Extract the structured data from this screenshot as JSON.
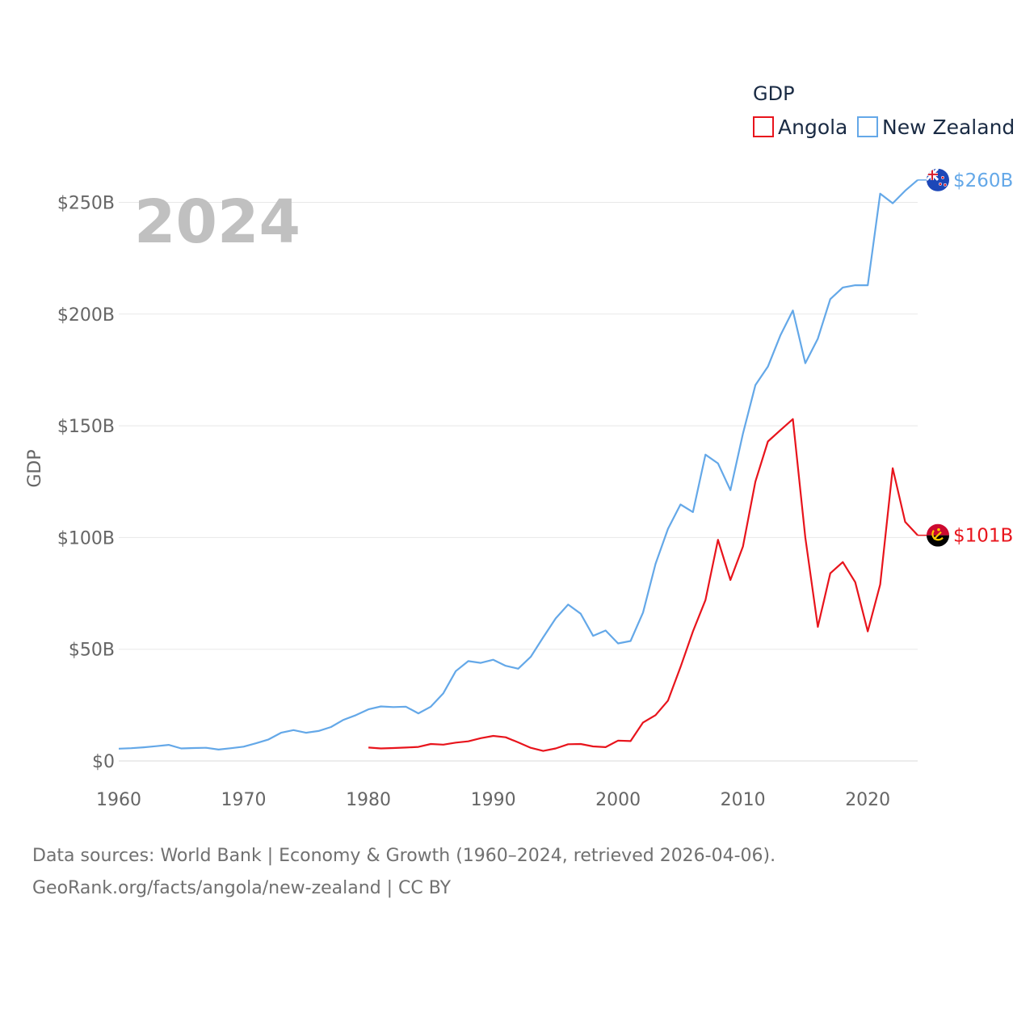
{
  "chart_data": {
    "type": "line",
    "title": "GDP",
    "overlay_year": "2024",
    "ylabel": "GDP",
    "xlabel": "",
    "xlim": [
      1960,
      2024
    ],
    "ylim": [
      0,
      265
    ],
    "y_unit": "billion USD",
    "x_ticks": [
      1960,
      1970,
      1980,
      1990,
      2000,
      2010,
      2020
    ],
    "x_tick_labels": [
      "1960",
      "1970",
      "1980",
      "1990",
      "2000",
      "2010",
      "2020"
    ],
    "y_ticks": [
      0,
      50,
      100,
      150,
      200,
      250
    ],
    "y_tick_labels": [
      "$0",
      "$50B",
      "$100B",
      "$150B",
      "$200B",
      "$250B"
    ],
    "grid": true,
    "legend": {
      "title": "GDP",
      "position": "top-right"
    },
    "series": [
      {
        "name": "Angola",
        "color": "#e8141c",
        "end_label": "$101B",
        "x": [
          1980,
          1981,
          1982,
          1983,
          1984,
          1985,
          1986,
          1987,
          1988,
          1989,
          1990,
          1991,
          1992,
          1993,
          1994,
          1995,
          1996,
          1997,
          1998,
          1999,
          2000,
          2001,
          2002,
          2003,
          2004,
          2005,
          2006,
          2007,
          2008,
          2009,
          2010,
          2011,
          2012,
          2013,
          2014,
          2015,
          2016,
          2017,
          2018,
          2019,
          2020,
          2021,
          2022,
          2023,
          2024
        ],
        "values": [
          6,
          5.6,
          5.8,
          6,
          6.3,
          7.6,
          7.3,
          8.2,
          8.8,
          10.2,
          11.2,
          10.6,
          8.3,
          5.9,
          4.5,
          5.6,
          7.5,
          7.6,
          6.5,
          6.2,
          9.1,
          8.9,
          17.2,
          20.5,
          27,
          42,
          58,
          72,
          99,
          81,
          96,
          125,
          143,
          148,
          153,
          100,
          60,
          84,
          89,
          80,
          58,
          79,
          131,
          107,
          101
        ]
      },
      {
        "name": "New Zealand",
        "color": "#64a8e8",
        "end_label": "$260B",
        "x": [
          1960,
          1961,
          1962,
          1963,
          1964,
          1965,
          1966,
          1967,
          1968,
          1969,
          1970,
          1971,
          1972,
          1973,
          1974,
          1975,
          1976,
          1977,
          1978,
          1979,
          1980,
          1981,
          1982,
          1983,
          1984,
          1985,
          1986,
          1987,
          1988,
          1989,
          1990,
          1991,
          1992,
          1993,
          1994,
          1995,
          1996,
          1997,
          1998,
          1999,
          2000,
          2001,
          2002,
          2003,
          2004,
          2005,
          2006,
          2007,
          2008,
          2009,
          2010,
          2011,
          2012,
          2013,
          2014,
          2015,
          2016,
          2017,
          2018,
          2019,
          2020,
          2021,
          2022,
          2023,
          2024
        ],
        "values": [
          5.5,
          5.7,
          6.1,
          6.6,
          7.2,
          5.6,
          5.8,
          5.9,
          5.1,
          5.7,
          6.4,
          7.9,
          9.6,
          12.6,
          13.8,
          12.6,
          13.4,
          15.2,
          18.4,
          20.5,
          23.1,
          24.4,
          24.1,
          24.3,
          21.3,
          24.3,
          30.3,
          40.2,
          44.7,
          43.9,
          45.3,
          42.6,
          41.3,
          46.6,
          55.3,
          63.8,
          70,
          65.9,
          56,
          58.4,
          52.6,
          53.7,
          66.4,
          88.2,
          103.9,
          114.8,
          111.4,
          137.1,
          133.2,
          121.2,
          146.5,
          168.2,
          176.5,
          190.4,
          201.6,
          178,
          189,
          206.7,
          211.9,
          212.9,
          212.9,
          253.9,
          249.6,
          255.2,
          260
        ]
      }
    ]
  },
  "source": {
    "line1": "Data sources: World Bank | Economy & Growth (1960–2024, retrieved 2026-04-06).",
    "line2": "GeoRank.org/facts/angola/new-zealand | CC BY"
  }
}
